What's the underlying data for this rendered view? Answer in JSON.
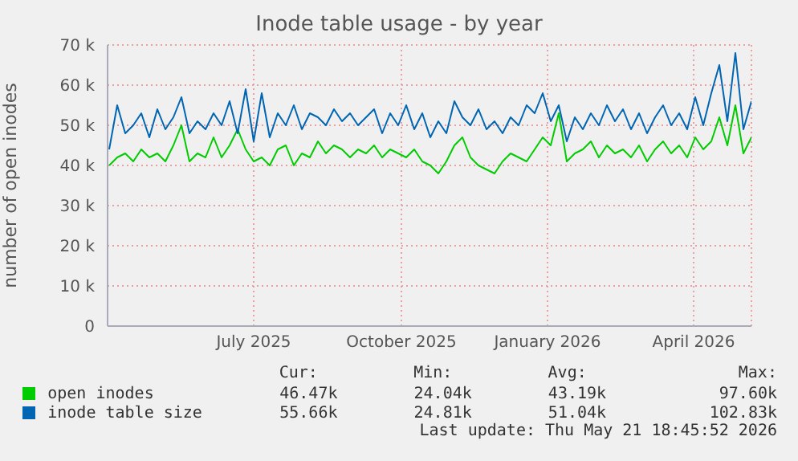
{
  "chart_data": {
    "type": "line",
    "title": "Inode table usage - by year",
    "ylabel": "number of open inodes",
    "x": [
      "2025-04-16",
      "2025-04-21",
      "2025-04-26",
      "2025-05-01",
      "2025-05-06",
      "2025-05-11",
      "2025-05-16",
      "2025-05-21",
      "2025-05-26",
      "2025-05-31",
      "2025-06-05",
      "2025-06-10",
      "2025-06-15",
      "2025-06-20",
      "2025-06-25",
      "2025-06-30",
      "2025-07-05",
      "2025-07-10",
      "2025-07-15",
      "2025-07-20",
      "2025-07-25",
      "2025-07-30",
      "2025-08-04",
      "2025-08-09",
      "2025-08-14",
      "2025-08-19",
      "2025-08-24",
      "2025-08-29",
      "2025-09-03",
      "2025-09-08",
      "2025-09-13",
      "2025-09-18",
      "2025-09-23",
      "2025-09-28",
      "2025-10-03",
      "2025-10-08",
      "2025-10-13",
      "2025-10-18",
      "2025-10-23",
      "2025-10-28",
      "2025-11-02",
      "2025-11-07",
      "2025-11-12",
      "2025-11-17",
      "2025-11-22",
      "2025-11-27",
      "2025-12-02",
      "2025-12-07",
      "2025-12-12",
      "2025-12-17",
      "2025-12-22",
      "2025-12-27",
      "2026-01-01",
      "2026-01-06",
      "2026-01-11",
      "2026-01-16",
      "2026-01-21",
      "2026-01-26",
      "2026-01-31",
      "2026-02-05",
      "2026-02-10",
      "2026-02-15",
      "2026-02-20",
      "2026-02-25",
      "2026-03-02",
      "2026-03-07",
      "2026-03-12",
      "2026-03-17",
      "2026-03-22",
      "2026-03-27",
      "2026-04-01",
      "2026-04-06",
      "2026-04-11",
      "2026-04-16",
      "2026-04-21",
      "2026-04-26",
      "2026-05-01",
      "2026-05-06",
      "2026-05-11",
      "2026-05-16",
      "2026-05-21"
    ],
    "series": [
      {
        "name": "open inodes",
        "color": "#00cc00",
        "values": [
          40000,
          42000,
          43000,
          41000,
          44000,
          42000,
          43000,
          41000,
          45000,
          50000,
          41000,
          43000,
          42000,
          47000,
          42000,
          45000,
          49000,
          44000,
          41000,
          42000,
          40000,
          44000,
          45000,
          40000,
          43000,
          42000,
          46000,
          43000,
          45000,
          44000,
          42000,
          44000,
          43000,
          45000,
          42000,
          44000,
          43000,
          42000,
          44000,
          41000,
          40000,
          38000,
          41000,
          45000,
          47000,
          42000,
          40000,
          39000,
          38000,
          41000,
          43000,
          42000,
          41000,
          44000,
          47000,
          45000,
          53000,
          41000,
          43000,
          44000,
          46000,
          42000,
          45000,
          43000,
          44000,
          42000,
          45000,
          41000,
          44000,
          46000,
          43000,
          45000,
          42000,
          47000,
          44000,
          46000,
          52000,
          45000,
          55000,
          43000,
          47000
        ]
      },
      {
        "name": "inode table size",
        "color": "#0066b3",
        "values": [
          44000,
          55000,
          48000,
          50000,
          53000,
          47000,
          54000,
          49000,
          52000,
          57000,
          48000,
          51000,
          49000,
          53000,
          50000,
          56000,
          48000,
          59000,
          46000,
          58000,
          47000,
          53000,
          50000,
          55000,
          49000,
          53000,
          52000,
          50000,
          54000,
          51000,
          53000,
          50000,
          52000,
          54000,
          48000,
          53000,
          50000,
          55000,
          49000,
          53000,
          47000,
          51000,
          48000,
          56000,
          52000,
          50000,
          54000,
          49000,
          51000,
          48000,
          52000,
          50000,
          55000,
          53000,
          58000,
          51000,
          55000,
          46000,
          52000,
          49000,
          53000,
          50000,
          55000,
          51000,
          54000,
          49000,
          53000,
          48000,
          52000,
          55000,
          50000,
          53000,
          49000,
          57000,
          50000,
          58000,
          65000,
          51000,
          68000,
          49000,
          56000
        ]
      }
    ],
    "xlim": [
      "2025-04-15",
      "2026-05-21"
    ],
    "xticks": [
      {
        "value": "2025-07-15",
        "label": "July 2025"
      },
      {
        "value": "2025-10-15",
        "label": "October 2025"
      },
      {
        "value": "2026-01-14",
        "label": "January 2026"
      },
      {
        "value": "2026-04-15",
        "label": "April 2026"
      }
    ],
    "ylim": [
      0,
      70000
    ],
    "yticks": [
      0,
      {
        "value": 10000,
        "label": "10 k"
      },
      {
        "value": 20000,
        "label": "20 k"
      },
      {
        "value": 30000,
        "label": "30 k"
      },
      {
        "value": 40000,
        "label": "40 k"
      },
      {
        "value": 50000,
        "label": "50 k"
      },
      {
        "value": 60000,
        "label": "60 k"
      },
      {
        "value": 70000,
        "label": "70 k"
      }
    ],
    "grid": true,
    "legend": "bottom",
    "marker": "none",
    "line_style": "solid",
    "annotations": [
      "Cur:",
      "Min:",
      "Avg:",
      "Max:",
      "46.47k",
      "24.04k",
      "43.19k",
      "97.60k",
      "55.66k",
      "24.81k",
      "51.04k",
      "102.83k",
      "Last update: Thu May 21 18:45:52 2026"
    ]
  }
}
